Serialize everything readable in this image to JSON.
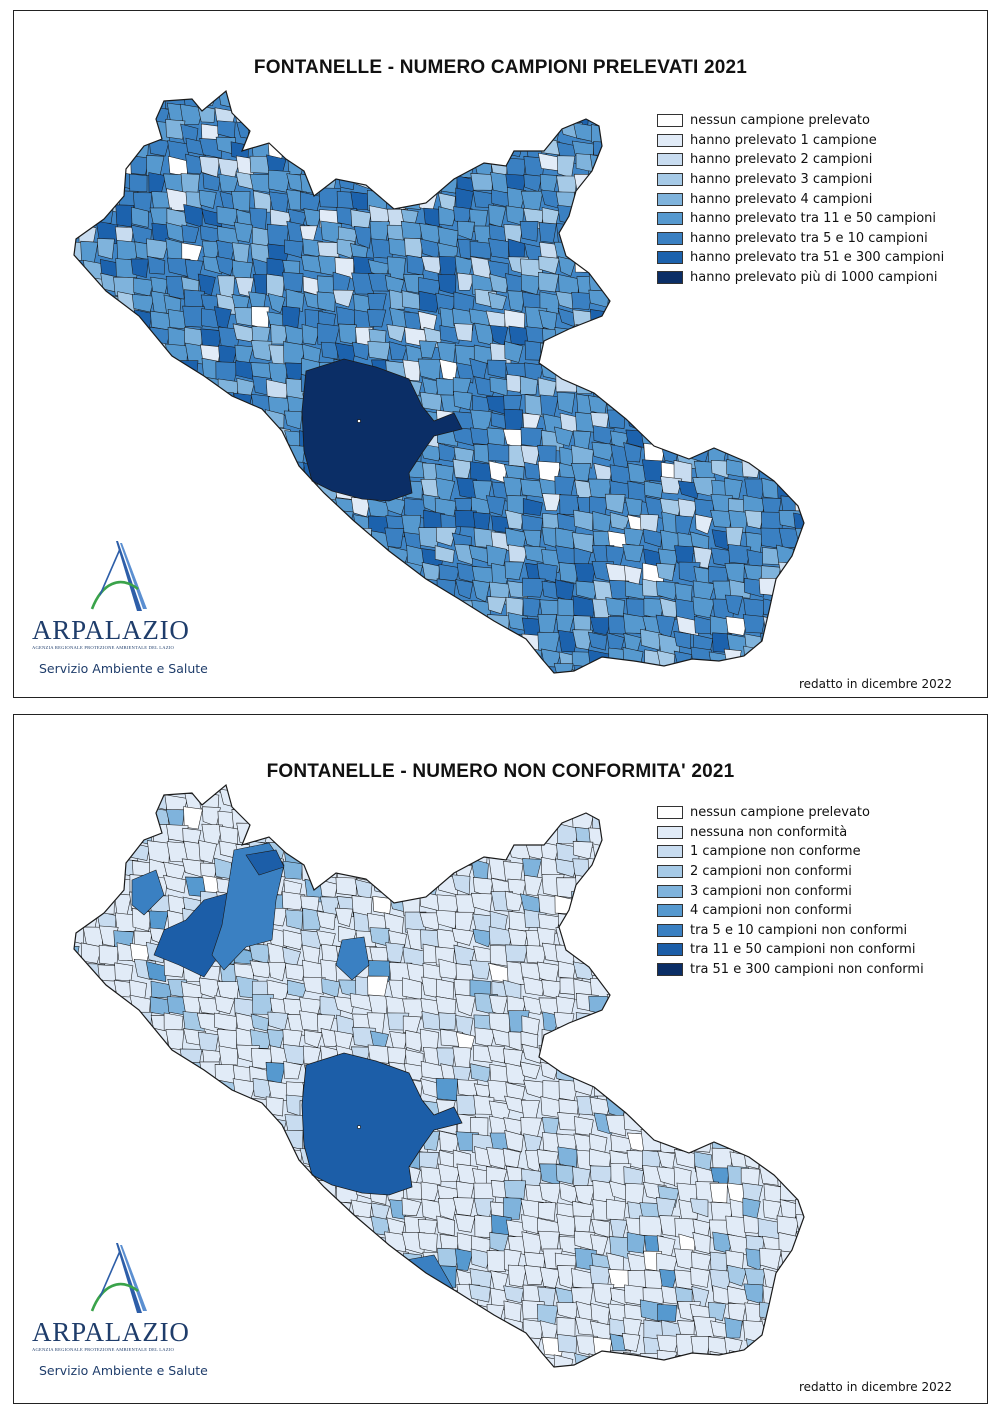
{
  "panels": [
    {
      "title": "FONTANELLE - NUMERO CAMPIONI PRELEVATI 2021",
      "legend": [
        {
          "label": "nessun campione prelevato",
          "color": "#ffffff"
        },
        {
          "label": "hanno prelevato 1 campione",
          "color": "#e1ebf7"
        },
        {
          "label": "hanno prelevato 2 campioni",
          "color": "#c8dcf0"
        },
        {
          "label": "hanno prelevato 3 campioni",
          "color": "#a6cae7"
        },
        {
          "label": "hanno prelevato 4 campioni",
          "color": "#7fb3dc"
        },
        {
          "label": "hanno prelevato tra 11 e 50 campioni",
          "color": "#5699cf"
        },
        {
          "label": "hanno prelevato tra 5 e 10 campioni",
          "color": "#3a80c2"
        },
        {
          "label": "hanno prelevato tra 51 e 300 campioni",
          "color": "#1c62ad"
        },
        {
          "label": "hanno prelevato più di 1000 campioni",
          "color": "#0b2e66"
        }
      ],
      "logo": {
        "name": "ARPALAZIO",
        "subtitle": "AGENZIA REGIONALE PROTEZIONE AMBIENTALE DEL LAZIO"
      },
      "service": "Servizio Ambiente e Salute",
      "note": "redatto in dicembre 2022"
    },
    {
      "title": "FONTANELLE - NUMERO NON CONFORMITA' 2021",
      "legend": [
        {
          "label": "nessun campione prelevato",
          "color": "#ffffff"
        },
        {
          "label": "nessuna non conformità",
          "color": "#e1ebf7"
        },
        {
          "label": "1 campione non conforme",
          "color": "#c8dcf0"
        },
        {
          "label": "2 campioni non conformi",
          "color": "#a6cae7"
        },
        {
          "label": "3 campioni non conformi",
          "color": "#7fb3dc"
        },
        {
          "label": "4 campioni non conformi",
          "color": "#5699cf"
        },
        {
          "label": "tra 5 e 10 campioni non conformi",
          "color": "#3a80c2"
        },
        {
          "label": "tra 11 e 50 campioni non conformi",
          "color": "#1c5ea8"
        },
        {
          "label": "tra 51 e 300 campioni non conformi",
          "color": "#0b2e66"
        }
      ],
      "logo": {
        "name": "ARPALAZIO",
        "subtitle": "AGENZIA REGIONALE PROTEZIONE AMBIENTALE DEL LAZIO"
      },
      "service": "Servizio Ambiente e Salute",
      "note": "redatto in dicembre 2022"
    }
  ]
}
